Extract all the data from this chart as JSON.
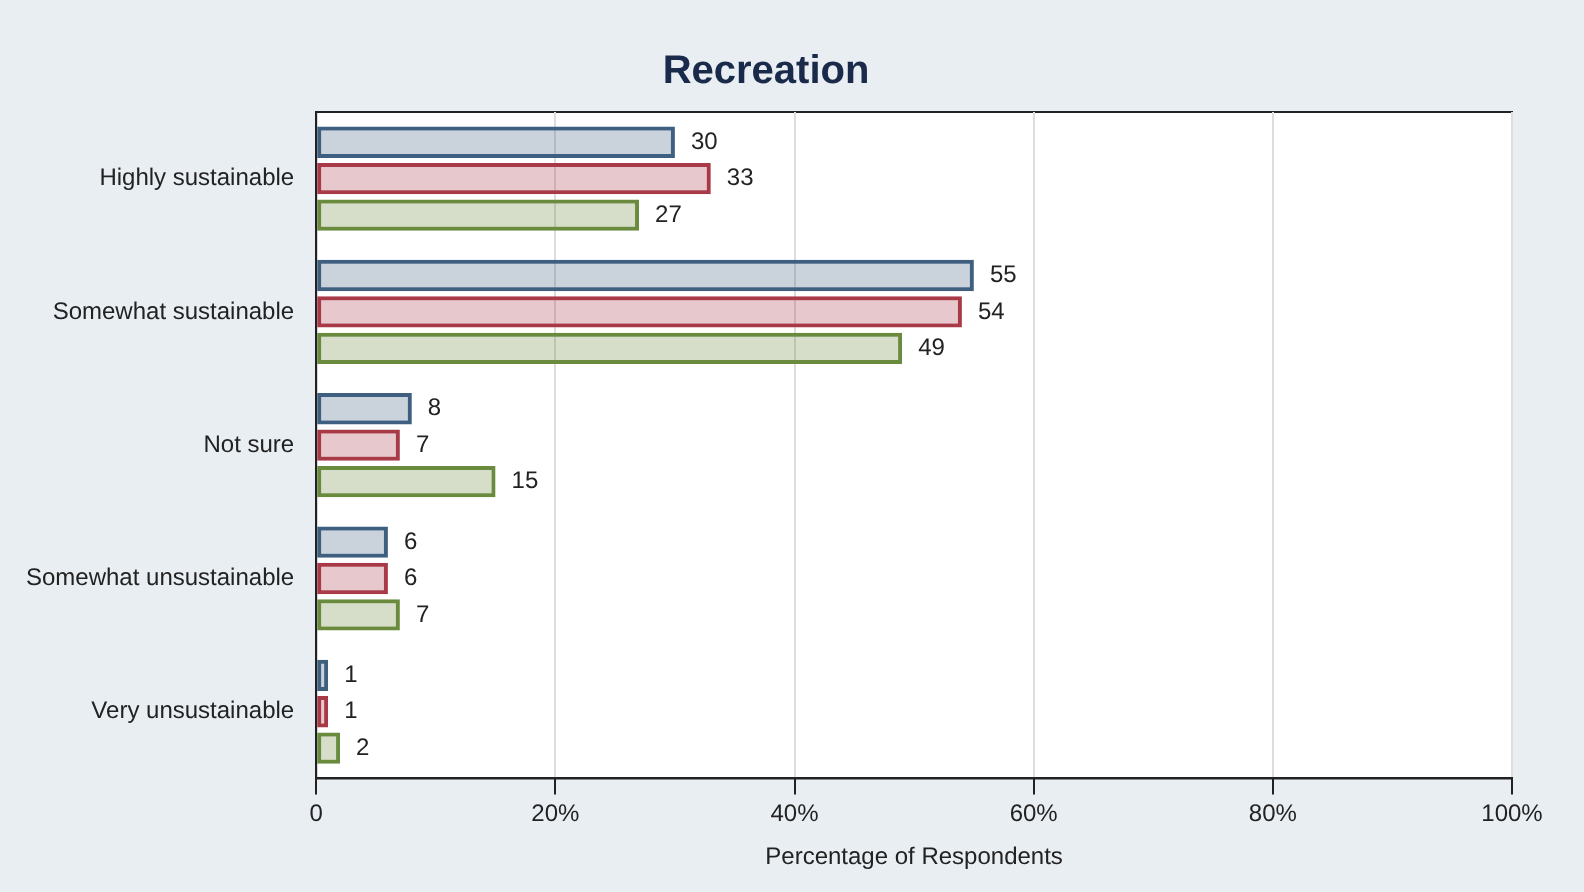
{
  "chart_data": {
    "type": "bar",
    "orientation": "horizontal",
    "title": "Recreation",
    "xlabel": "Percentage of Respondents",
    "categories": [
      "Highly sustainable",
      "Somewhat sustainable",
      "Not sure",
      "Somewhat unsustainable",
      "Very unsustainable"
    ],
    "series": [
      {
        "color": "#3f5f80",
        "values": [
          30,
          55,
          8,
          6,
          1
        ]
      },
      {
        "color": "#a83a48",
        "values": [
          33,
          54,
          7,
          6,
          1
        ]
      },
      {
        "color": "#6a8a3e",
        "values": [
          27,
          49,
          15,
          7,
          2
        ]
      }
    ],
    "xlim": [
      0,
      100
    ],
    "xticks": [
      {
        "value": 0,
        "label": "0"
      },
      {
        "value": 20,
        "label": "20%"
      },
      {
        "value": 40,
        "label": "40%"
      },
      {
        "value": 60,
        "label": "60%"
      },
      {
        "value": 80,
        "label": "80%"
      },
      {
        "value": 100,
        "label": "100%"
      }
    ],
    "grid": "x",
    "legend": false,
    "data_labels": true
  }
}
